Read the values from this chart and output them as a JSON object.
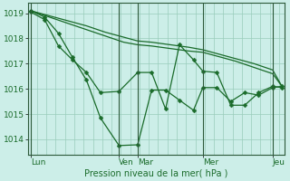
{
  "background_color": "#cceee8",
  "plot_bg": "#cceee8",
  "grid_color": "#99ccbb",
  "line_color": "#1a6b2a",
  "xlabel": "Pression niveau de la mer( hPa )",
  "ylim": [
    1013.4,
    1019.4
  ],
  "yticks": [
    1014,
    1015,
    1016,
    1017,
    1018,
    1019
  ],
  "day_labels": [
    "Lun",
    "Ven",
    "Mar",
    "Mer",
    "Jeu"
  ],
  "day_positions": [
    0,
    9.5,
    11.5,
    18.5,
    26
  ],
  "xlim": [
    -0.3,
    27.3
  ],
  "num_vcols": 28,
  "series_smooth1_x": [
    0,
    2,
    4,
    6,
    8,
    10,
    11.5,
    13,
    15,
    17,
    18.5,
    20,
    22,
    24,
    26,
    27
  ],
  "series_smooth1_y": [
    1019.1,
    1018.85,
    1018.6,
    1018.35,
    1018.1,
    1017.85,
    1017.75,
    1017.7,
    1017.6,
    1017.5,
    1017.45,
    1017.3,
    1017.1,
    1016.85,
    1016.6,
    1016.1
  ],
  "series_smooth2_x": [
    0,
    2,
    4,
    6,
    8,
    10,
    11.5,
    13,
    15,
    17,
    18.5,
    20,
    22,
    24,
    26,
    27
  ],
  "series_smooth2_y": [
    1019.1,
    1018.9,
    1018.7,
    1018.5,
    1018.25,
    1018.05,
    1017.9,
    1017.85,
    1017.75,
    1017.65,
    1017.55,
    1017.4,
    1017.2,
    1017.0,
    1016.75,
    1016.1
  ],
  "series_jagged1_x": [
    0,
    1.5,
    3,
    4.5,
    6,
    7.5,
    9.5,
    11.5,
    13,
    14.5,
    16,
    17.5,
    18.5,
    20,
    21.5,
    23,
    24.5,
    26,
    27
  ],
  "series_jagged1_y": [
    1019.1,
    1018.85,
    1018.2,
    1017.25,
    1016.35,
    1014.85,
    1013.75,
    1013.78,
    1015.95,
    1015.95,
    1015.55,
    1015.15,
    1016.05,
    1016.05,
    1015.5,
    1015.85,
    1015.75,
    1016.05,
    1016.1
  ],
  "series_jagged2_x": [
    0,
    1.5,
    3,
    4.5,
    6,
    7.5,
    9.5,
    11.5,
    13,
    14.5,
    16,
    17.5,
    18.5,
    20,
    21.5,
    23,
    24.5,
    26,
    27
  ],
  "series_jagged2_y": [
    1019.05,
    1018.75,
    1017.7,
    1017.15,
    1016.65,
    1015.85,
    1015.9,
    1016.65,
    1016.65,
    1015.2,
    1017.75,
    1017.15,
    1016.7,
    1016.65,
    1015.35,
    1015.35,
    1015.85,
    1016.1,
    1016.05
  ]
}
